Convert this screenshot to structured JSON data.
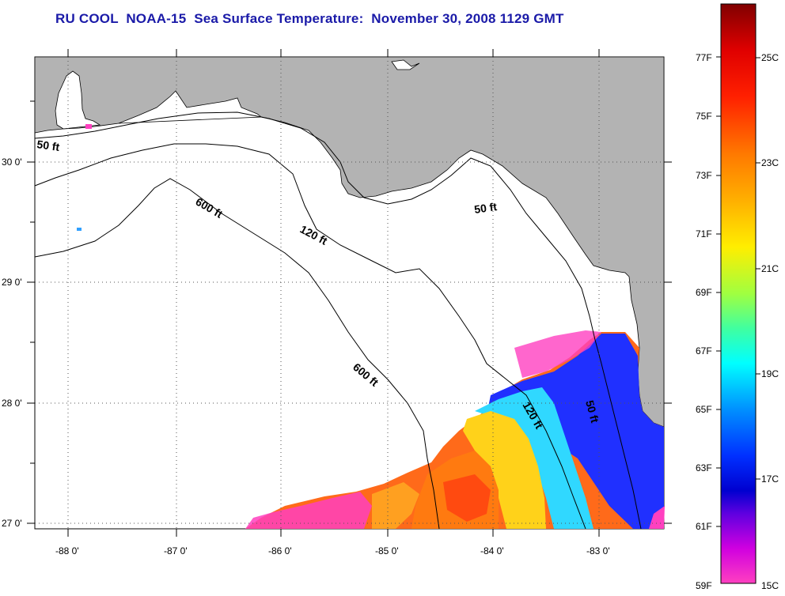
{
  "title": "RU COOL  NOAA-15  Sea Surface Temperature:  November 30, 2008 1129 GMT",
  "map": {
    "lat_labels": [
      "30 0'",
      "29 0'",
      "28 0'",
      "27 0'"
    ],
    "lon_labels": [
      "-88 0'",
      "-87 0'",
      "-86 0'",
      "-85 0'",
      "-84 0'",
      "-83 0'"
    ],
    "contour_labels": [
      "50 ft",
      "600 ft",
      "120 ft",
      "50 ft",
      "600 ft",
      "120 ft",
      "50 ft"
    ],
    "land_color": "#b3b3b3",
    "water_color": "#ffffff"
  },
  "colorbar": {
    "f_labels": [
      "77F",
      "75F",
      "73F",
      "71F",
      "69F",
      "67F",
      "65F",
      "63F",
      "61F",
      "59F"
    ],
    "c_labels": [
      "25C",
      "23C",
      "21C",
      "19C",
      "17C",
      "15C"
    ]
  }
}
